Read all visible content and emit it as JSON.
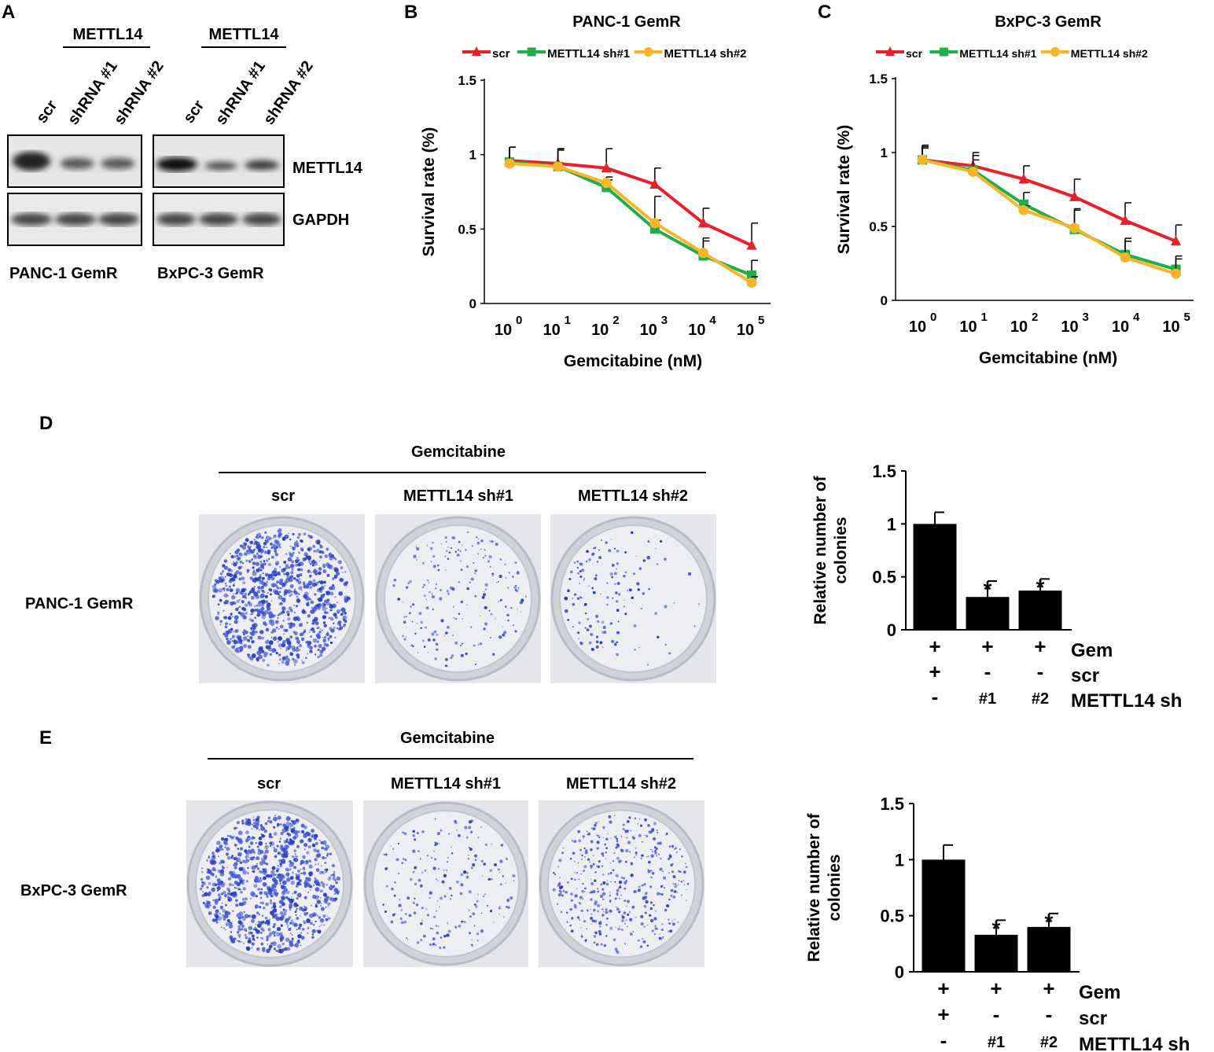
{
  "panel_labels": {
    "a": "A",
    "b": "B",
    "c": "C",
    "d": "D",
    "e": "E"
  },
  "panel_a": {
    "group1_header": "METTL14",
    "group2_header": "METTL14",
    "lanes": [
      "scr",
      "shRNA #1",
      "shRNA #2",
      "scr",
      "shRNA #1",
      "shRNA #2"
    ],
    "blot_labels": [
      "METTL14",
      "GAPDH"
    ],
    "cell_lines": [
      "PANC-1 GemR",
      "BxPC-3 GemR"
    ]
  },
  "panel_d": {
    "treatment": "Gemcitabine",
    "columns": [
      "scr",
      "METTL14 sh#1",
      "METTL14 sh#2"
    ],
    "row_label": "PANC-1 GemR"
  },
  "panel_e": {
    "treatment": "Gemcitabine",
    "columns": [
      "scr",
      "METTL14 sh#1",
      "METTL14 sh#2"
    ],
    "row_label": "BxPC-3 GemR"
  },
  "colors": {
    "scr": "#e8202a",
    "sh1": "#1fae4b",
    "sh2": "#f7b52a",
    "bar": "#000000"
  },
  "chart_data": [
    {
      "id": "B",
      "type": "line",
      "title": "PANC-1 GemR",
      "xlabel": "Gemcitabine (nM)",
      "ylabel": "Survival rate (%)",
      "x_ticks": [
        "10",
        "10",
        "10",
        "10",
        "10",
        "10"
      ],
      "x_exponents": [
        "0",
        "1",
        "2",
        "3",
        "4",
        "5"
      ],
      "y_ticks": [
        "0",
        "0.5",
        "1",
        "1.5"
      ],
      "ylim": [
        0,
        1.5
      ],
      "x_log": [
        0,
        1,
        2,
        3,
        4,
        5
      ],
      "series": [
        {
          "name": "scr",
          "color": "#e8202a",
          "marker": "triangle",
          "values": [
            0.96,
            0.94,
            0.91,
            0.8,
            0.54,
            0.39
          ],
          "errors": [
            0.09,
            0.1,
            0.13,
            0.11,
            0.1,
            0.15
          ]
        },
        {
          "name": "METTL14 sh#1",
          "color": "#1fae4b",
          "marker": "square",
          "values": [
            0.95,
            0.92,
            0.78,
            0.5,
            0.32,
            0.19
          ],
          "errors": [
            0.1,
            0.12,
            0.05,
            0.06,
            0.1,
            0.1
          ]
        },
        {
          "name": "METTL14 sh#2",
          "color": "#f7b52a",
          "marker": "circle",
          "values": [
            0.94,
            0.92,
            0.81,
            0.54,
            0.34,
            0.14
          ],
          "errors": [
            0.11,
            0.11,
            0.04,
            0.18,
            0.1,
            0.04
          ]
        }
      ]
    },
    {
      "id": "C",
      "type": "line",
      "title": "BxPC-3 GemR",
      "xlabel": "Gemcitabine (nM)",
      "ylabel": "Survival rate (%)",
      "x_ticks": [
        "10",
        "10",
        "10",
        "10",
        "10",
        "10"
      ],
      "x_exponents": [
        "0",
        "1",
        "2",
        "3",
        "4",
        "5"
      ],
      "y_ticks": [
        "0",
        "0.5",
        "1",
        "1.5"
      ],
      "ylim": [
        0,
        1.5
      ],
      "x_log": [
        0,
        1,
        2,
        3,
        4,
        5
      ],
      "series": [
        {
          "name": "scr",
          "color": "#e8202a",
          "marker": "triangle",
          "values": [
            0.95,
            0.91,
            0.82,
            0.7,
            0.54,
            0.4
          ],
          "errors": [
            0.1,
            0.09,
            0.09,
            0.12,
            0.12,
            0.11
          ]
        },
        {
          "name": "METTL14 sh#1",
          "color": "#1fae4b",
          "marker": "square",
          "values": [
            0.95,
            0.88,
            0.65,
            0.48,
            0.31,
            0.21
          ],
          "errors": [
            0.09,
            0.1,
            0.08,
            0.14,
            0.11,
            0.09
          ]
        },
        {
          "name": "METTL14 sh#2",
          "color": "#f7b52a",
          "marker": "circle",
          "values": [
            0.95,
            0.87,
            0.61,
            0.49,
            0.29,
            0.18
          ],
          "errors": [
            0.08,
            0.08,
            0.03,
            0.12,
            0.11,
            0.1
          ]
        }
      ]
    },
    {
      "id": "D",
      "type": "bar",
      "ylabel": "Relative number of colonies",
      "ylabel_lines": [
        "Relative number of",
        "colonies"
      ],
      "y_ticks": [
        "0",
        "0.5",
        "1",
        "1.5"
      ],
      "ylim": [
        0,
        1.5
      ],
      "categories": [
        "scr",
        "METTL14 sh#1",
        "METTL14 sh#2"
      ],
      "values": [
        1.0,
        0.31,
        0.37
      ],
      "errors": [
        0.11,
        0.15,
        0.11
      ],
      "significance": [
        "",
        "*",
        "*"
      ],
      "condition_rows": [
        {
          "label": "Gem",
          "marks": [
            "+",
            "+",
            "+"
          ]
        },
        {
          "label": "scr",
          "marks": [
            "+",
            "-",
            "-"
          ]
        },
        {
          "label": "METTL14 sh",
          "marks": [
            "-",
            "#1",
            "#2"
          ]
        }
      ]
    },
    {
      "id": "E",
      "type": "bar",
      "ylabel": "Relative number of colonies",
      "ylabel_lines": [
        "Relative number of",
        "colonies"
      ],
      "y_ticks": [
        "0",
        "0.5",
        "1",
        "1.5"
      ],
      "ylim": [
        0,
        1.5
      ],
      "categories": [
        "scr",
        "METTL14 sh#1",
        "METTL14 sh#2"
      ],
      "values": [
        1.0,
        0.33,
        0.4
      ],
      "errors": [
        0.13,
        0.13,
        0.12
      ],
      "significance": [
        "",
        "*",
        "*"
      ],
      "condition_rows": [
        {
          "label": "Gem",
          "marks": [
            "+",
            "+",
            "+"
          ]
        },
        {
          "label": "scr",
          "marks": [
            "+",
            "-",
            "-"
          ]
        },
        {
          "label": "METTL14 sh",
          "marks": [
            "-",
            "#1",
            "#2"
          ]
        }
      ]
    }
  ]
}
